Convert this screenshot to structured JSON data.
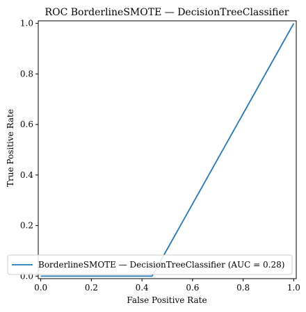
{
  "chart_data": {
    "type": "line",
    "title": "ROC BorderlineSMOTE — DecisionTreeClassifier",
    "xlabel": "False Positive Rate",
    "ylabel": "True Positive Rate",
    "xlim": [
      -0.01,
      1.01
    ],
    "ylim": [
      -0.01,
      1.01
    ],
    "xticks": [
      0.0,
      0.2,
      0.4,
      0.6,
      0.8,
      1.0
    ],
    "xtick_labels": [
      "0.0",
      "0.2",
      "0.4",
      "0.6",
      "0.8",
      "1.0"
    ],
    "yticks": [
      0.0,
      0.2,
      0.4,
      0.6,
      0.8,
      1.0
    ],
    "ytick_labels": [
      "0.0",
      "0.2",
      "0.4",
      "0.6",
      "0.8",
      "1.0"
    ],
    "grid": false,
    "legend_position": "lower-left",
    "series": [
      {
        "name": "BorderlineSMOTE — DecisionTreeClassifier (AUC = 0.28)",
        "color": "#1f77b4",
        "x": [
          0.0,
          0.44,
          1.0
        ],
        "y": [
          0.0,
          0.0,
          1.0
        ]
      }
    ]
  }
}
